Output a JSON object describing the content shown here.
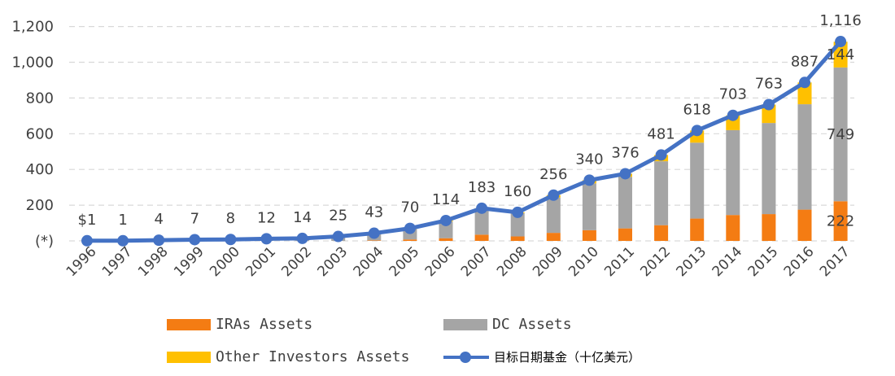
{
  "chart_data": {
    "type": "bar",
    "stacked": true,
    "categories": [
      "1996",
      "1997",
      "1998",
      "1999",
      "2000",
      "2001",
      "2002",
      "2003",
      "2004",
      "2005",
      "2006",
      "2007",
      "2008",
      "2009",
      "2010",
      "2011",
      "2012",
      "2013",
      "2014",
      "2015",
      "2016",
      "2017"
    ],
    "y_ticks": [
      "(*)",
      "200",
      "400",
      "600",
      "800",
      "1,000",
      "1,200"
    ],
    "ylim": [
      0,
      1200
    ],
    "grid": "horizontal dashed",
    "legend_position": "bottom",
    "series": [
      {
        "name": "IRAs Assets",
        "type": "bar",
        "color": "#F47C13",
        "values": [
          0,
          0,
          0,
          0,
          0,
          0,
          0,
          0,
          3,
          8,
          15,
          35,
          25,
          45,
          60,
          70,
          88,
          125,
          145,
          150,
          175,
          222
        ]
      },
      {
        "name": "DC Assets",
        "type": "bar",
        "color": "#A5A5A5",
        "values": [
          1,
          1,
          4,
          7,
          8,
          12,
          14,
          25,
          37,
          58,
          94,
          140,
          130,
          198,
          262,
          289,
          358,
          425,
          475,
          510,
          590,
          749
        ]
      },
      {
        "name": "Other Investors Assets",
        "type": "bar",
        "color": "#FFC000",
        "values": [
          0,
          0,
          0,
          0,
          0,
          0,
          0,
          0,
          3,
          4,
          5,
          8,
          5,
          13,
          18,
          17,
          35,
          68,
          83,
          103,
          122,
          144
        ]
      },
      {
        "name": "目标日期基金（十亿美元）",
        "type": "line",
        "color": "#4472C4",
        "values": [
          1,
          1,
          4,
          7,
          8,
          12,
          14,
          25,
          43,
          70,
          114,
          183,
          160,
          256,
          340,
          376,
          481,
          618,
          703,
          763,
          887,
          1116
        ]
      }
    ],
    "line_labels": [
      "$1",
      "1",
      "4",
      "7",
      "8",
      "12",
      "14",
      "25",
      "43",
      "70",
      "114",
      "183",
      "160",
      "256",
      "340",
      "376",
      "481",
      "618",
      "703",
      "763",
      "887",
      "1,116"
    ],
    "annotations": [
      "749",
      "144",
      "222"
    ]
  }
}
